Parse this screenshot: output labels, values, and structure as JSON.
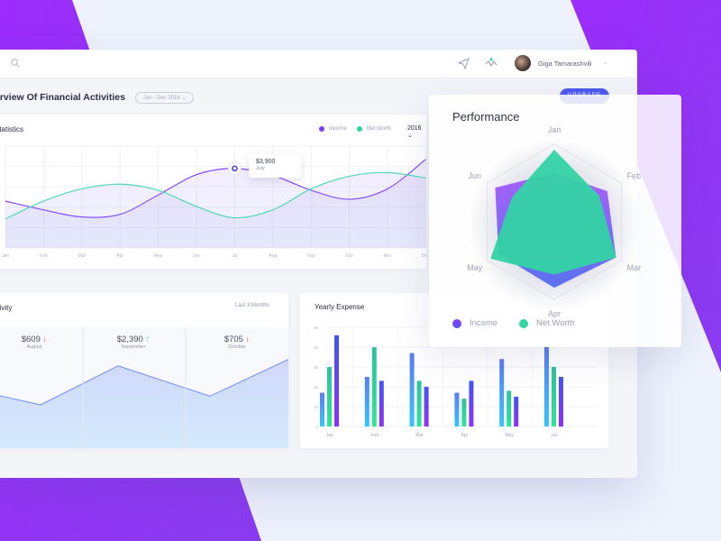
{
  "colors": {
    "purple": "#9b2cfb",
    "income": "#7b3cf6",
    "net_worth": "#34d3a4",
    "blue": "#4b5cf0",
    "down": "#f0613c",
    "up": "#3fd6a5"
  },
  "header": {
    "search_icon": "search-icon",
    "send_icon": "send-icon",
    "activity_icon": "pulse-icon",
    "user_name": "Giga Tamarashvili"
  },
  "page": {
    "title": "Overview Of Financial Activities",
    "date_range": "Jan - Dec 2016",
    "upgrade_label": "UPGRADE"
  },
  "statistics": {
    "title": "Statistics",
    "legend": [
      "Income",
      "Net Worth"
    ],
    "year": "2016",
    "tooltip": {
      "value": "$3,900",
      "label": "July"
    }
  },
  "activity": {
    "title": "Activity",
    "period": "Last 3 Months",
    "stats": [
      {
        "value": "$609",
        "label": "August",
        "trend": "down"
      },
      {
        "value": "$2,390",
        "label": "September",
        "trend": "up"
      },
      {
        "value": "$705",
        "label": "October",
        "trend": "down"
      }
    ],
    "line_values": [
      52,
      40,
      76,
      48,
      82
    ]
  },
  "performance": {
    "title": "Performance",
    "legend": [
      "Income",
      "Net Worth"
    ]
  },
  "yearly_expense": {
    "title": "Yearly Expense"
  },
  "chart_data": [
    {
      "type": "line",
      "title": "Statistics",
      "categories": [
        "Jan",
        "Feb",
        "Mar",
        "Apr",
        "May",
        "Jun",
        "Jul",
        "Aug",
        "Sep",
        "Oct",
        "Nov",
        "Dec"
      ],
      "ylim": [
        0,
        5000
      ],
      "series": [
        {
          "name": "Income",
          "values": [
            2300,
            1870,
            1520,
            1650,
            2600,
            3600,
            3900,
            3560,
            2830,
            2390,
            2900,
            4350
          ]
        },
        {
          "name": "Net Worth",
          "values": [
            1430,
            2300,
            2900,
            3130,
            2830,
            2040,
            1480,
            1870,
            2900,
            3520,
            3700,
            3430
          ]
        }
      ]
    },
    {
      "type": "bar",
      "title": "Yearly Expense",
      "categories": [
        "Jan",
        "Feb",
        "Mar",
        "Apr",
        "May",
        "Jun"
      ],
      "yticks": [
        "0",
        "1k",
        "2k",
        "3k",
        "4k",
        "5k"
      ],
      "ylim": [
        0,
        5
      ],
      "series": [
        {
          "values": [
            1.7,
            2.5,
            3.7,
            1.7,
            3.4,
            4.0
          ]
        },
        {
          "values": [
            3.0,
            4.0,
            2.3,
            1.4,
            1.8,
            3.0
          ]
        },
        {
          "values": [
            4.6,
            2.3,
            2.0,
            2.3,
            1.5,
            2.5
          ]
        }
      ]
    },
    {
      "type": "radar",
      "title": "Performance",
      "categories": [
        "Jan",
        "Feb",
        "Mar",
        "Apr",
        "May",
        "Jun"
      ],
      "ylim": [
        0,
        100
      ],
      "series": [
        {
          "name": "Income",
          "values": [
            93,
            67,
            92,
            68,
            95,
            63
          ]
        },
        {
          "name": "Net Worth",
          "values": [
            63,
            79,
            92,
            85,
            83,
            88
          ]
        }
      ]
    }
  ]
}
